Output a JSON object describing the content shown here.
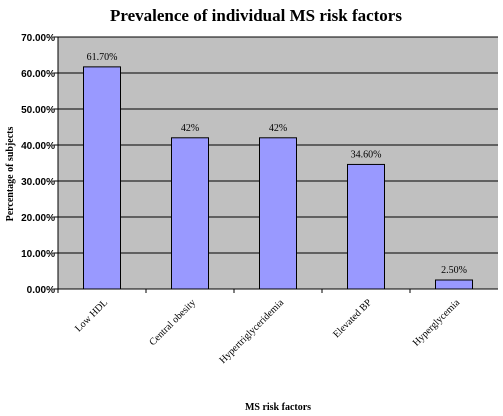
{
  "chart_data": {
    "type": "bar",
    "title": "Prevalence of individual MS risk factors",
    "xlabel": "MS risk factors",
    "ylabel": "Percentage of subjects",
    "categories": [
      "Low HDL",
      "Central obesity",
      "Hypertriglyceridemia",
      "Elevated BP",
      "Hyperglycemia"
    ],
    "values": [
      61.7,
      42,
      42,
      34.6,
      2.5
    ],
    "data_labels": [
      "61.70%",
      "42%",
      "42%",
      "34.60%",
      "2.50%"
    ],
    "ylim": [
      0,
      70
    ],
    "yticks": [
      0,
      10,
      20,
      30,
      40,
      50,
      60,
      70
    ],
    "ytick_labels": [
      "0.00%",
      "10.00%",
      "20.00%",
      "30.00%",
      "40.00%",
      "50.00%",
      "60.00%",
      "70.00%"
    ],
    "grid": true,
    "legend": "none",
    "colors": {
      "plot_background": "#c0c0c0",
      "bar_fill": "#9999ff",
      "bar_stroke": "#000000",
      "gridline": "#000000"
    }
  }
}
